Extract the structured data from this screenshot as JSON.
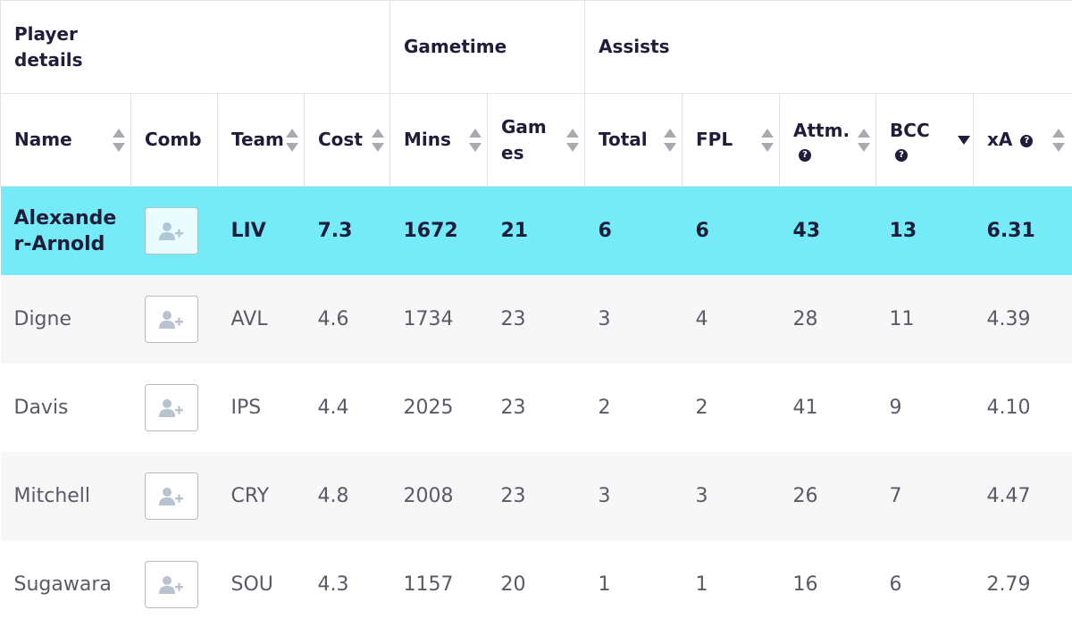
{
  "groups": {
    "player_details": "Player details",
    "gametime": "Gametime",
    "assists": "Assists"
  },
  "columns": {
    "name": "Name",
    "comb": "Comb",
    "team": "Team",
    "cost": "Cost",
    "mins": "Mins",
    "games": "Games",
    "total": "Total",
    "fpl": "FPL",
    "attm": "Attm.",
    "bcc": "BCC",
    "xa": "xA",
    "help_glyph": "?"
  },
  "sort": {
    "column": "bcc",
    "direction": "desc"
  },
  "colors": {
    "highlight_row": "#76ebf8",
    "text_dark": "#1f1d3a",
    "text_muted": "#5a5a66",
    "alt_row": "#f7f7f7"
  },
  "rows": [
    {
      "name": "Alexander-Arnold",
      "team": "LIV",
      "cost": "7.3",
      "mins": "1672",
      "games": "21",
      "total": "6",
      "fpl": "6",
      "attm": "43",
      "bcc": "13",
      "xa": "6.31",
      "comb_icon": "add-user-icon"
    },
    {
      "name": "Digne",
      "team": "AVL",
      "cost": "4.6",
      "mins": "1734",
      "games": "23",
      "total": "3",
      "fpl": "4",
      "attm": "28",
      "bcc": "11",
      "xa": "4.39",
      "comb_icon": "add-user-icon"
    },
    {
      "name": "Davis",
      "team": "IPS",
      "cost": "4.4",
      "mins": "2025",
      "games": "23",
      "total": "2",
      "fpl": "2",
      "attm": "41",
      "bcc": "9",
      "xa": "4.10",
      "comb_icon": "add-user-icon"
    },
    {
      "name": "Mitchell",
      "team": "CRY",
      "cost": "4.8",
      "mins": "2008",
      "games": "23",
      "total": "3",
      "fpl": "3",
      "attm": "26",
      "bcc": "7",
      "xa": "4.47",
      "comb_icon": "add-user-icon"
    },
    {
      "name": "Sugawara",
      "team": "SOU",
      "cost": "4.3",
      "mins": "1157",
      "games": "20",
      "total": "1",
      "fpl": "1",
      "attm": "16",
      "bcc": "6",
      "xa": "2.79",
      "comb_icon": "add-user-icon"
    }
  ]
}
